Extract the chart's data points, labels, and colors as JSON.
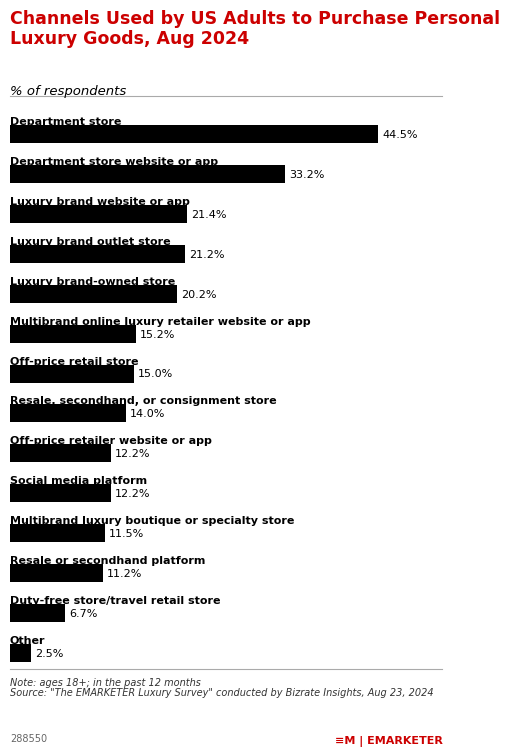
{
  "title": "Channels Used by US Adults to Purchase Personal\nLuxury Goods, Aug 2024",
  "subtitle": "% of respondents",
  "title_color": "#cc0000",
  "subtitle_color": "#000000",
  "bar_color": "#000000",
  "label_color": "#000000",
  "categories": [
    "Department store",
    "Department store website or app",
    "Luxury brand website or app",
    "Luxury brand outlet store",
    "Luxury brand-owned store",
    "Multibrand online luxury retailer website or app",
    "Off-price retail store",
    "Resale, secondhand, or consignment store",
    "Off-price retailer website or app",
    "Social media platform",
    "Multibrand luxury boutique or specialty store",
    "Resale or secondhand platform",
    "Duty-free store/travel retail store",
    "Other"
  ],
  "values": [
    44.5,
    33.2,
    21.4,
    21.2,
    20.2,
    15.2,
    15.0,
    14.0,
    12.2,
    12.2,
    11.5,
    11.2,
    6.7,
    2.5
  ],
  "value_labels": [
    "44.5%",
    "33.2%",
    "21.4%",
    "21.2%",
    "20.2%",
    "15.2%",
    "15.0%",
    "14.0%",
    "12.2%",
    "12.2%",
    "11.5%",
    "11.2%",
    "6.7%",
    "2.5%"
  ],
  "note_line1": "Note: ages 18+; in the past 12 months",
  "note_line2": "Source: \"The EMARKETER Luxury Survey\" conducted by Bizrate Insights, Aug 23, 2024",
  "footer_id": "288550",
  "footer_logo": "≡M | EMARKETER",
  "xlim": [
    0,
    50
  ],
  "background_color": "#ffffff",
  "bar_height": 0.45,
  "category_fontsize": 8.0,
  "value_fontsize": 8.0,
  "title_fontsize": 12.5,
  "subtitle_fontsize": 9.5,
  "note_fontsize": 7.0
}
